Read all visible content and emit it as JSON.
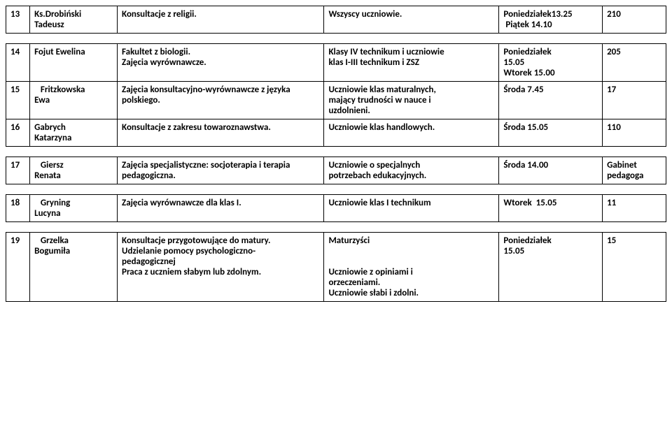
{
  "tables": [
    {
      "rows": [
        {
          "num": "13",
          "name_lines": [
            "Ks.Drobiński",
            "Tadeusz"
          ],
          "subj_lines": [
            "Konsultacje z religii."
          ],
          "who_lines": [
            "Wszyscy uczniowie."
          ],
          "when_lines": [
            "Poniedziałek13.25",
            " Piątek 14.10"
          ],
          "room_lines": [
            "210"
          ]
        }
      ]
    },
    {
      "rows": [
        {
          "num": "14",
          "name_lines": [
            "Fojut Ewelina"
          ],
          "subj_lines": [
            "Fakultet z biologii.",
            "Zajęcia wyrównawcze."
          ],
          "who_lines": [
            "Klasy IV technikum i uczniowie",
            "klas I-III technikum i ZSZ"
          ],
          "when_lines": [
            "Poniedziałek",
            "15.05",
            "Wtorek 15.00"
          ],
          "room_lines": [
            "205"
          ]
        },
        {
          "num": "15",
          "name_lines": [
            "   Fritzkowska",
            "Ewa"
          ],
          "subj_lines": [
            "Zajęcia konsultacyjno-wyrównawcze z języka",
            "polskiego."
          ],
          "who_lines": [
            "Uczniowie klas maturalnych,",
            "mający trudności w nauce i",
            "uzdolnieni."
          ],
          "when_lines": [
            "Środa 7.45"
          ],
          "room_lines": [
            "17"
          ]
        },
        {
          "num": "16",
          "name_lines": [
            "Gabrych",
            "Katarzyna"
          ],
          "subj_lines": [
            "Konsultacje z zakresu towaroznawstwa."
          ],
          "who_lines": [
            "Uczniowie klas handlowych."
          ],
          "when_lines": [
            "Środa 15.05"
          ],
          "room_lines": [
            "110"
          ]
        }
      ]
    },
    {
      "rows": [
        {
          "num": "17",
          "name_lines": [
            "   Giersz",
            "Renata"
          ],
          "subj_lines": [
            "Zajęcia specjalistyczne: socjoterapia i terapia",
            "pedagogiczna."
          ],
          "who_lines": [
            "Uczniowie o specjalnych",
            "potrzebach edukacyjnych."
          ],
          "when_lines": [
            "Środa 14.00"
          ],
          "room_lines": [
            "Gabinet",
            "pedagoga"
          ]
        }
      ]
    },
    {
      "rows": [
        {
          "num": "18",
          "name_lines": [
            "   Gryning",
            "Lucyna"
          ],
          "subj_lines": [
            "Zajęcia wyrównawcze dla klas I."
          ],
          "who_lines": [
            "Uczniowie klas I technikum"
          ],
          "when_lines": [
            "Wtorek  15.05"
          ],
          "room_lines": [
            "11"
          ]
        }
      ]
    },
    {
      "rows": [
        {
          "num": "19",
          "name_lines": [
            "   Grzelka",
            "Bogumiła"
          ],
          "subj_lines": [
            "Konsultacje przygotowujące do matury.",
            "Udzielanie pomocy psychologiczno-",
            "pedagogicznej",
            "Praca z uczniem słabym lub zdolnym."
          ],
          "who_lines": [
            "Maturzyści",
            "",
            "",
            "Uczniowie z opiniami i",
            "orzeczeniami.",
            "Uczniowie słabi i zdolni."
          ],
          "when_lines": [
            "Poniedziałek",
            "15.05"
          ],
          "room_lines": [
            "15"
          ]
        }
      ]
    }
  ]
}
